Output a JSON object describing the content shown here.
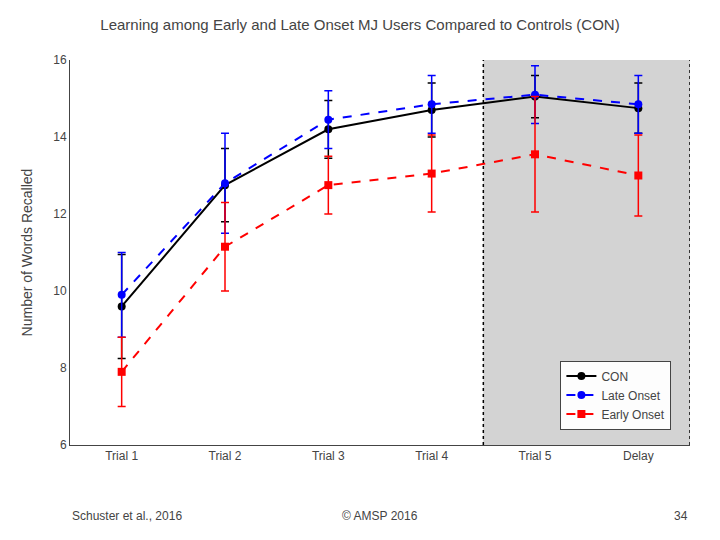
{
  "chart_data": {
    "type": "line",
    "title": "Learning among Early and Late Onset MJ Users Compared to Controls (CON)",
    "ylabel": "Number of Words Recalled",
    "categories": [
      "Trial 1",
      "Trial 2",
      "Trial 3",
      "Trial 4",
      "Trial 5",
      "Delay"
    ],
    "series": [
      {
        "name": "CON",
        "color": "#000000",
        "marker": "circle",
        "line_style": "solid",
        "values": [
          9.6,
          12.75,
          14.2,
          14.7,
          15.05,
          14.75
        ],
        "yerr": [
          1.35,
          0.95,
          0.75,
          0.7,
          0.55,
          0.65
        ]
      },
      {
        "name": "Late Onset",
        "color": "#0000FF",
        "marker": "circle",
        "line_style": "dashed",
        "values": [
          9.9,
          12.8,
          14.45,
          14.85,
          15.1,
          14.85
        ],
        "yerr": [
          1.1,
          1.3,
          0.75,
          0.75,
          0.75,
          0.75
        ]
      },
      {
        "name": "Early Onset",
        "color": "#FF0000",
        "marker": "square",
        "line_style": "dashed",
        "values": [
          7.9,
          11.15,
          12.75,
          13.05,
          13.55,
          13.0
        ],
        "yerr": [
          0.9,
          1.15,
          0.75,
          1.0,
          1.5,
          1.05
        ]
      }
    ],
    "ylim": [
      6,
      16
    ],
    "yticks": [
      6,
      8,
      10,
      12,
      14,
      16
    ],
    "grid": false,
    "legend": "lower right",
    "shaded": {
      "categories": [
        "Trial 5",
        "Delay"
      ],
      "color": "#D3D3D3"
    },
    "annotations": [
      "Schuster et al., 2016",
      "© AMSP 2016",
      "34"
    ]
  }
}
